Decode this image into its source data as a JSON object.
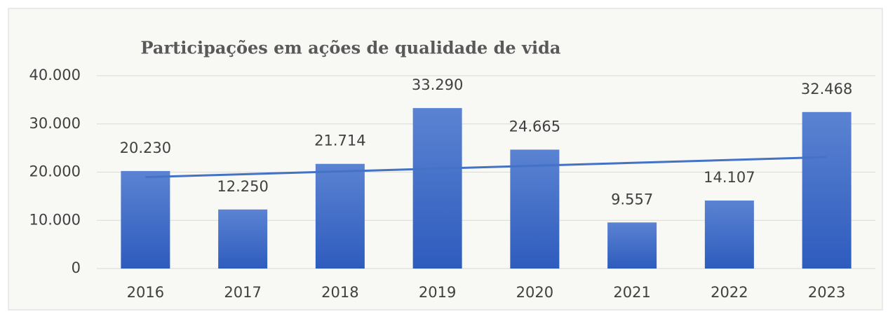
{
  "chart_data": {
    "type": "bar",
    "title": "Participações em ações de qualidade de vida",
    "categories": [
      "2016",
      "2017",
      "2018",
      "2019",
      "2020",
      "2021",
      "2022",
      "2023"
    ],
    "values": [
      20230,
      12250,
      21714,
      33290,
      24665,
      9557,
      14107,
      32468
    ],
    "value_labels": [
      "20.230",
      "12.250",
      "21.714",
      "33.290",
      "24.665",
      "9.557",
      "14.107",
      "32.468"
    ],
    "color": "#4472c4",
    "ylim": [
      0,
      40000
    ],
    "yticks": [
      0,
      {
        "value": 10000,
        "label": "10.000"
      },
      {
        "value": 20000,
        "label": "20.000"
      },
      {
        "value": 30000,
        "label": "30.000"
      },
      {
        "value": 40000,
        "label": "40.000"
      }
    ],
    "grid": true,
    "trendline": true
  }
}
